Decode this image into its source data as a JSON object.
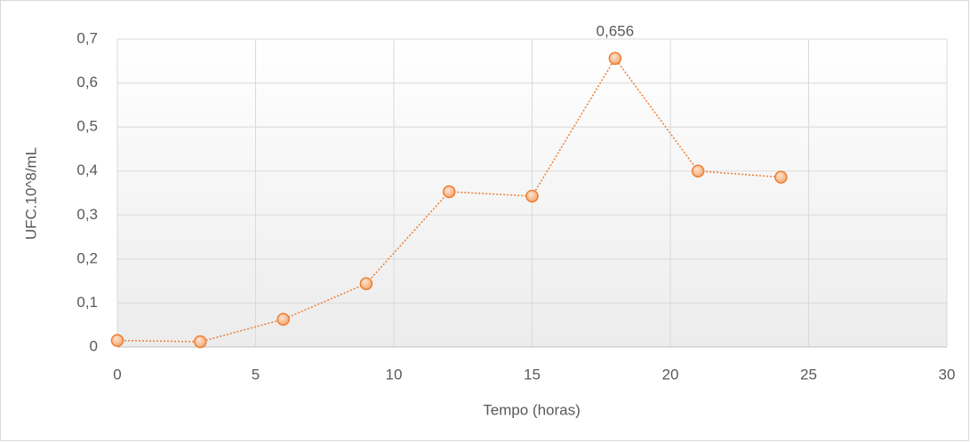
{
  "chart_data": {
    "type": "scatter-line",
    "x": [
      0,
      3,
      6,
      9,
      12,
      15,
      18,
      21,
      24
    ],
    "values": [
      0.015,
      0.012,
      0.063,
      0.144,
      0.353,
      0.343,
      0.656,
      0.4,
      0.386
    ],
    "value_labels": [
      null,
      null,
      null,
      null,
      null,
      null,
      "0,656",
      null,
      null
    ],
    "color": "#ed7d31",
    "xlabel": "Tempo (horas)",
    "ylabel": "UFC.10^8/mL",
    "xlim": [
      0,
      30
    ],
    "xticks": [
      0,
      5,
      10,
      15,
      20,
      25,
      30
    ],
    "ylim": [
      0,
      0.7
    ],
    "yticks": [
      0,
      {
        "value": 0.1,
        "label": "0,1"
      },
      {
        "value": 0.2,
        "label": "0,2"
      },
      {
        "value": 0.3,
        "label": "0,3"
      },
      {
        "value": 0.4,
        "label": "0,4"
      },
      {
        "value": 0.5,
        "label": "0,5"
      },
      {
        "value": 0.6,
        "label": "0,6"
      },
      {
        "value": 0.7,
        "label": "0,7"
      }
    ],
    "grid": true
  }
}
